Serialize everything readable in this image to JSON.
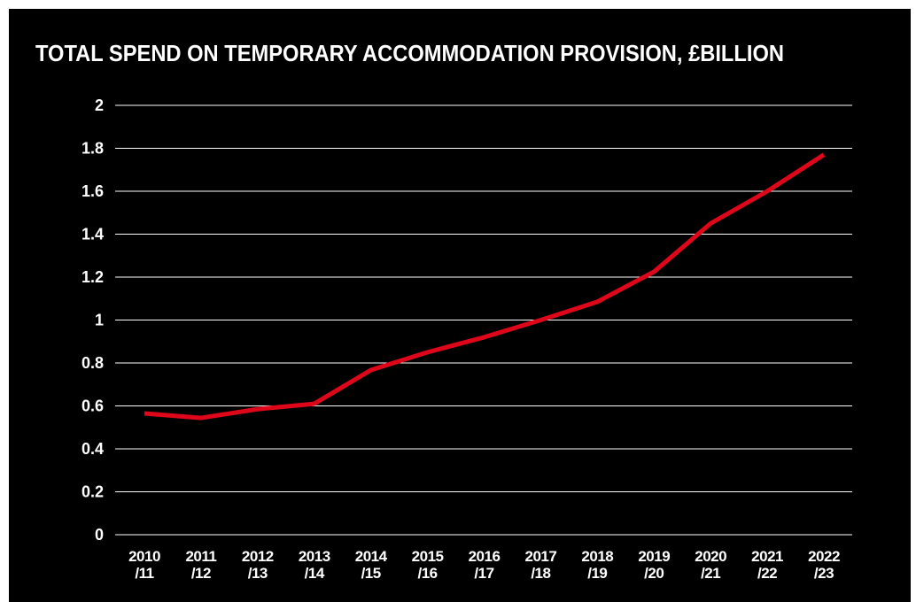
{
  "chart_data": {
    "type": "line",
    "title": "TOTAL SPEND ON TEMPORARY ACCOMMODATION PROVISION, £BILLION",
    "categories": [
      "2010 /11",
      "2011 /12",
      "2012 /13",
      "2013 /14",
      "2014 /15",
      "2015 /16",
      "2016 /17",
      "2017 /18",
      "2018 /19",
      "2019 /20",
      "2020 /21",
      "2021 /22",
      "2022 /23"
    ],
    "series": [
      {
        "name": "Total spend",
        "color": "#e0061a",
        "values": [
          0.565,
          0.544,
          0.585,
          0.61,
          0.767,
          0.85,
          0.92,
          1.0,
          1.085,
          1.225,
          1.45,
          1.6,
          1.77
        ]
      }
    ],
    "ylim": [
      0,
      2
    ],
    "yticks": [
      0,
      0.2,
      0.4,
      0.6,
      0.8,
      1,
      1.2,
      1.4,
      1.6,
      1.8,
      2
    ],
    "grid": true
  }
}
